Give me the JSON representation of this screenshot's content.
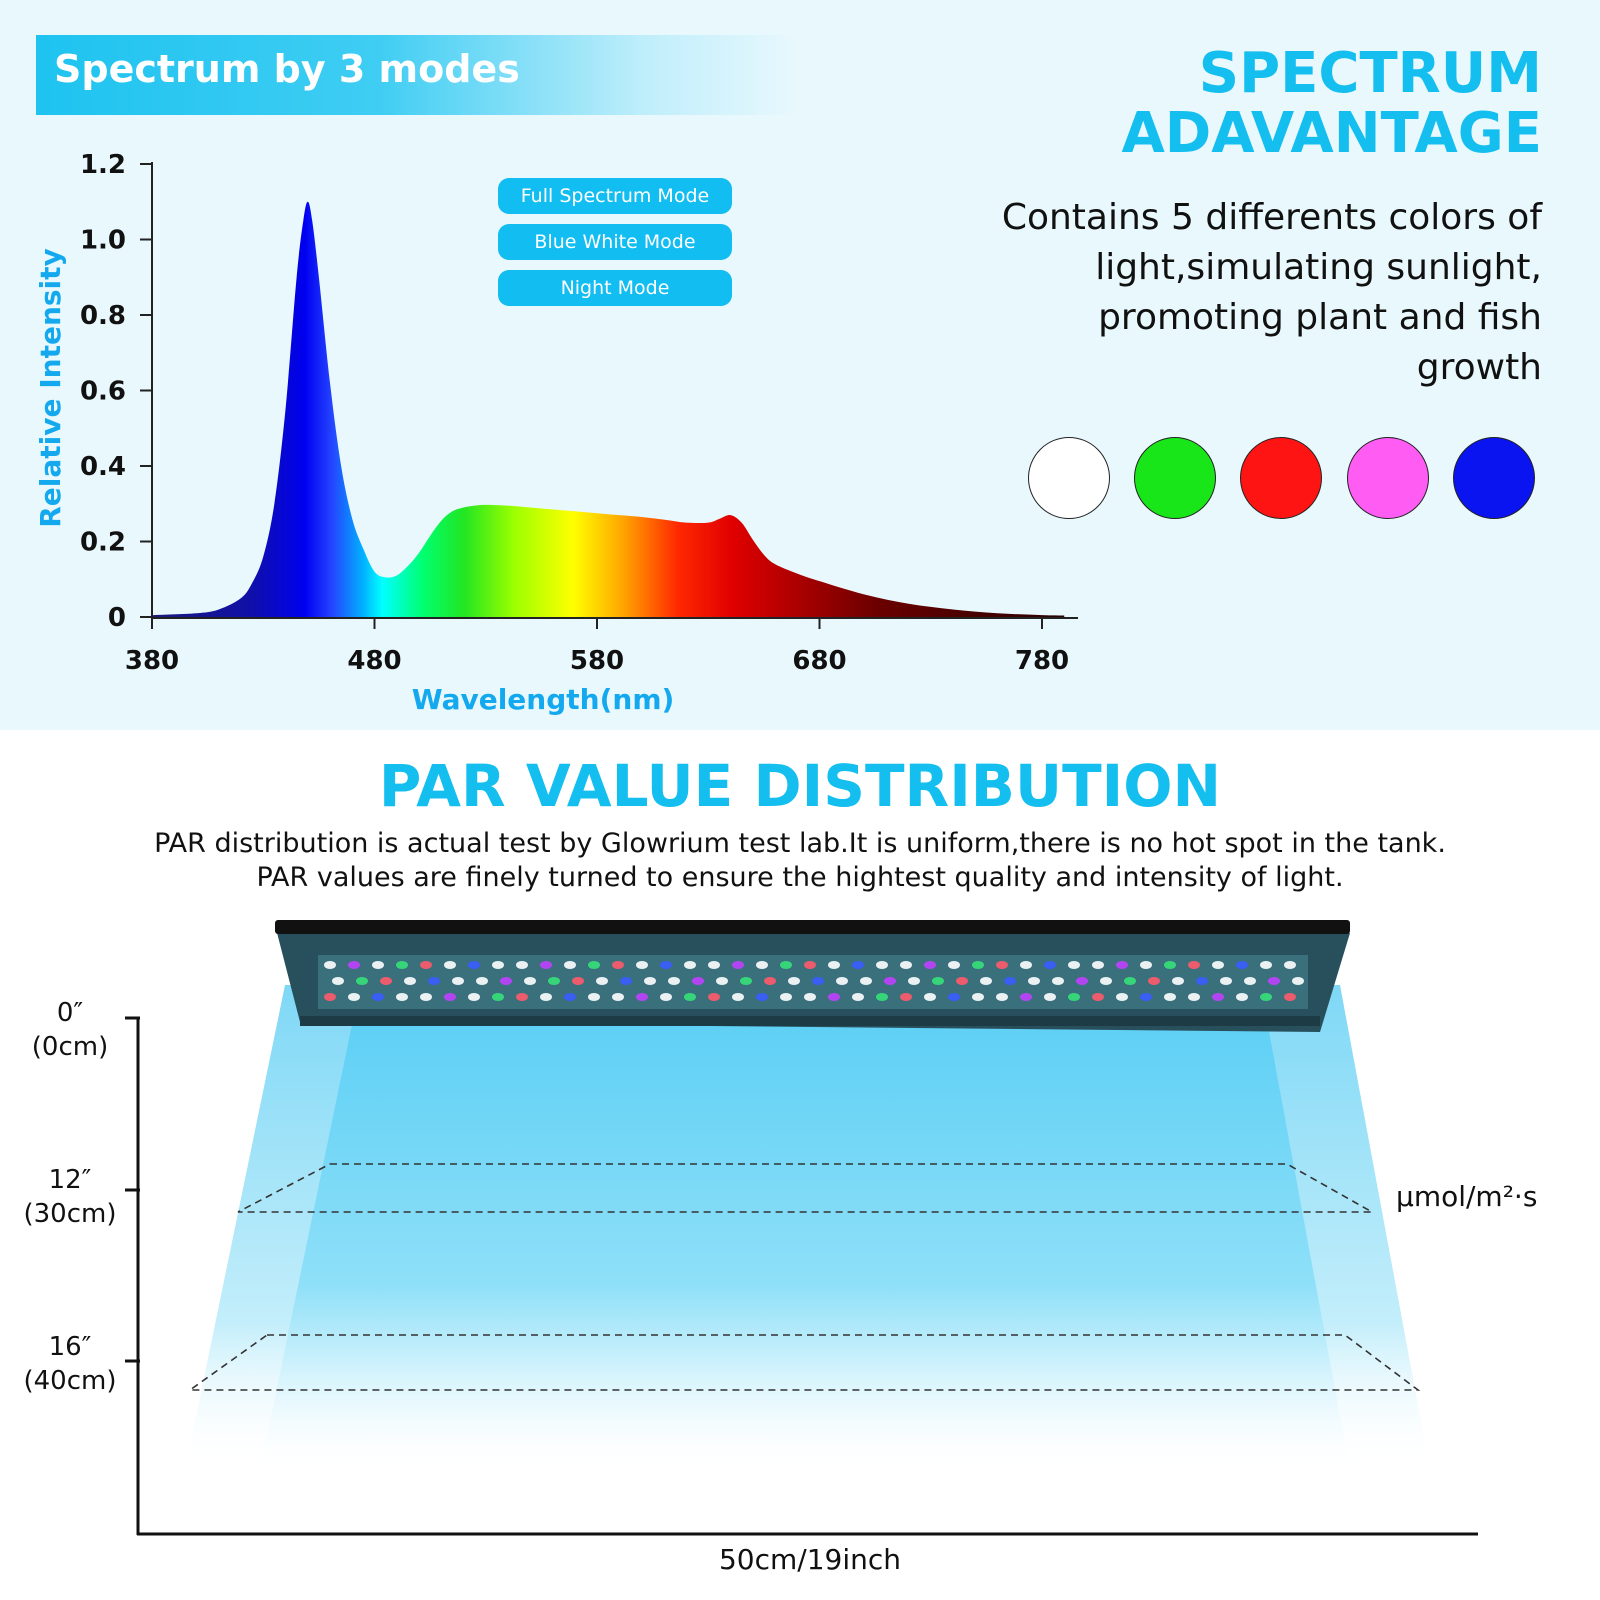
{
  "header": {
    "banner_text": "Spectrum by 3 modes",
    "title_lines": [
      "SPECTRUM",
      "ADAVANTAGE"
    ],
    "description": "Contains 5 differents colors of light,simulating sunlight, promoting plant and fish growth"
  },
  "modes": [
    "Full Spectrum Mode",
    "Blue White Mode",
    "Night Mode"
  ],
  "light_colors": [
    {
      "name": "white",
      "hex": "#ffffff"
    },
    {
      "name": "green",
      "hex": "#19e619"
    },
    {
      "name": "red",
      "hex": "#ff1414"
    },
    {
      "name": "pink",
      "hex": "#ff5cf4"
    },
    {
      "name": "blue",
      "hex": "#0a14f0"
    }
  ],
  "chart_data": {
    "type": "area",
    "xlabel": "Wavelength(nm)",
    "ylabel": "Relative Intensity",
    "xlim": [
      380,
      800
    ],
    "ylim": [
      0,
      1.2
    ],
    "x_ticks": [
      380,
      480,
      580,
      680,
      780
    ],
    "y_ticks": [
      0,
      0.2,
      0.4,
      0.6,
      0.8,
      1.0,
      1.2
    ],
    "y_tick_labels": [
      "0",
      "0.2",
      "0.4",
      "0.6",
      "0.8",
      "1.0",
      "1.2"
    ],
    "grid": false,
    "fill": "spectral gradient (wavelength colors)",
    "series": [
      {
        "x": [
          380,
          400,
          410,
          420,
          425,
          430,
          435,
          440,
          445,
          448,
          450,
          452,
          455,
          460,
          465,
          470,
          475,
          480,
          485,
          490,
          495,
          500,
          505,
          510,
          515,
          520,
          525,
          530,
          540,
          550,
          560,
          570,
          580,
          590,
          600,
          610,
          620,
          630,
          635,
          640,
          645,
          650,
          655,
          660,
          670,
          680,
          700,
          720,
          740,
          760,
          780,
          790
        ],
        "y": [
          0.005,
          0.01,
          0.02,
          0.05,
          0.09,
          0.16,
          0.3,
          0.55,
          0.9,
          1.05,
          1.1,
          1.05,
          0.9,
          0.62,
          0.4,
          0.26,
          0.18,
          0.12,
          0.105,
          0.11,
          0.135,
          0.17,
          0.215,
          0.255,
          0.28,
          0.29,
          0.295,
          0.297,
          0.295,
          0.29,
          0.285,
          0.28,
          0.275,
          0.27,
          0.265,
          0.258,
          0.25,
          0.25,
          0.26,
          0.27,
          0.25,
          0.205,
          0.165,
          0.14,
          0.115,
          0.095,
          0.06,
          0.035,
          0.02,
          0.01,
          0.005,
          0.004
        ]
      }
    ]
  },
  "par": {
    "title": "PAR VALUE DISTRIBUTION",
    "line1": "PAR distribution is actual test by Glowrium test lab.It is uniform,there is no hot spot in the tank.",
    "line2": "PAR values are finely turned to ensure the hightest quality and intensity of light.",
    "depths": [
      {
        "inch": "0″",
        "cm": "(0cm)"
      },
      {
        "inch": "12″",
        "cm": "(30cm)"
      },
      {
        "inch": "16″",
        "cm": "(40cm)"
      }
    ],
    "unit": "μmol/m²·s",
    "width_label": "50cm/19inch"
  }
}
